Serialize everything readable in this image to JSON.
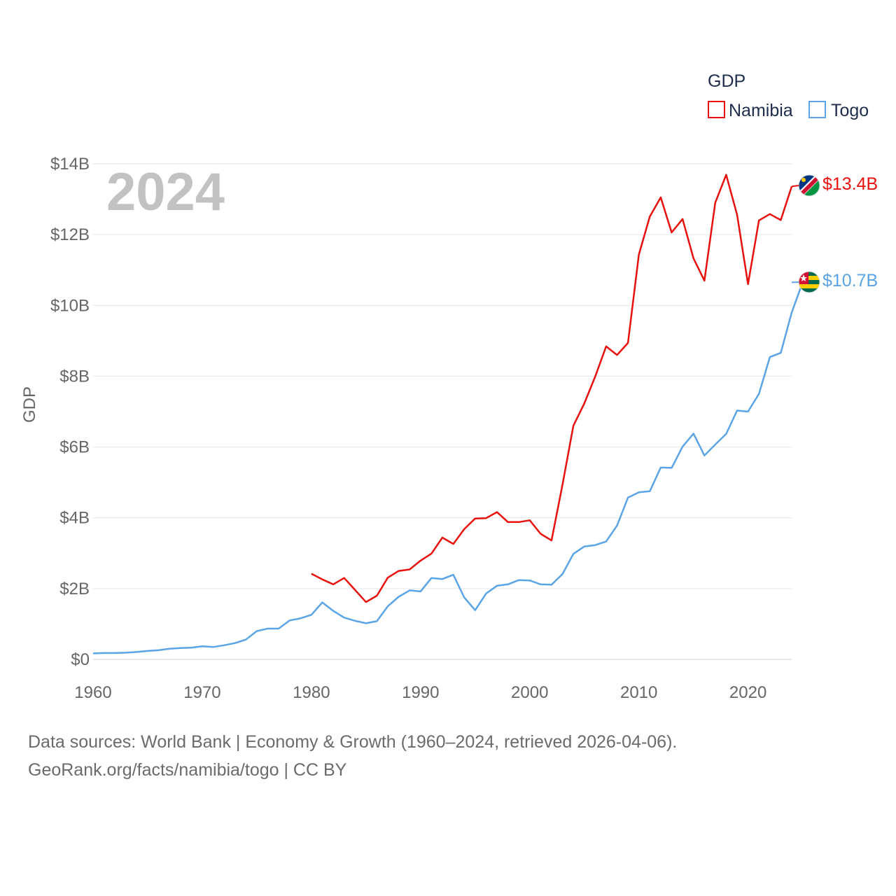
{
  "chart_data": {
    "type": "line",
    "title": "GDP",
    "ylabel": "GDP",
    "xlabel": "",
    "year_label": "2024",
    "xlim": [
      1960,
      2024
    ],
    "ylim": [
      0,
      14
    ],
    "x_ticks": [
      1960,
      1970,
      1980,
      1990,
      2000,
      2010,
      2020
    ],
    "y_ticks": [
      0,
      2,
      4,
      6,
      8,
      10,
      12,
      14
    ],
    "y_tick_labels": [
      "$0",
      "$2B",
      "$4B",
      "$6B",
      "$8B",
      "$10B",
      "$12B",
      "$14B"
    ],
    "unit": "billion USD",
    "legend": {
      "title": "GDP",
      "position": "top-right"
    },
    "series": [
      {
        "name": "Namibia",
        "color": "#e8110f",
        "end_label": "$13.4B",
        "start_year": 1980,
        "values": [
          2.42,
          2.26,
          2.12,
          2.3,
          1.96,
          1.62,
          1.8,
          2.31,
          2.5,
          2.54,
          2.79,
          2.99,
          3.44,
          3.26,
          3.68,
          3.98,
          3.99,
          4.16,
          3.88,
          3.88,
          3.93,
          3.55,
          3.36,
          4.93,
          6.6,
          7.23,
          7.99,
          8.84,
          8.6,
          8.94,
          11.44,
          12.51,
          13.05,
          12.06,
          12.44,
          11.33,
          10.7,
          12.9,
          13.69,
          12.56,
          10.6,
          12.4,
          12.58,
          12.41,
          13.36
        ]
      },
      {
        "name": "Togo",
        "color": "#5ba4e5",
        "end_label": "$10.7B",
        "start_year": 1960,
        "values": [
          0.17,
          0.18,
          0.18,
          0.19,
          0.21,
          0.24,
          0.26,
          0.3,
          0.32,
          0.33,
          0.37,
          0.35,
          0.4,
          0.46,
          0.56,
          0.8,
          0.87,
          0.87,
          1.1,
          1.16,
          1.26,
          1.61,
          1.37,
          1.18,
          1.09,
          1.02,
          1.08,
          1.5,
          1.77,
          1.95,
          1.92,
          2.3,
          2.27,
          2.39,
          1.75,
          1.39,
          1.86,
          2.08,
          2.12,
          2.24,
          2.23,
          2.12,
          2.11,
          2.41,
          2.98,
          3.19,
          3.23,
          3.33,
          3.78,
          4.57,
          4.72,
          4.75,
          5.42,
          5.41,
          6.01,
          6.38,
          5.76,
          6.07,
          6.37,
          7.03,
          7.0,
          7.5,
          8.54,
          8.66,
          9.8,
          10.65
        ]
      }
    ]
  },
  "footer": {
    "line1": "Data sources: World Bank | Economy & Growth (1960–2024, retrieved 2026-04-06).",
    "line2": "GeoRank.org/facts/namibia/togo | CC BY"
  }
}
